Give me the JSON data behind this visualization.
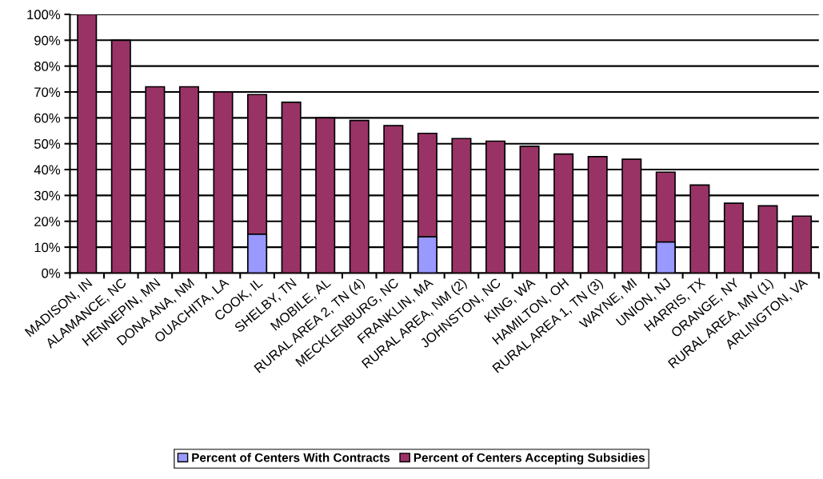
{
  "chart_data": {
    "type": "bar",
    "categories": [
      "MADISON, IN",
      "ALAMANCE, NC",
      "HENNEPIN, MN",
      "DONA ANA, NM",
      "OUACHITA, LA",
      "COOK, IL",
      "SHELBY, TN",
      "MOBILE, AL",
      "RURAL AREA 2, TN (4)",
      "MECKLENBURG, NC",
      "FRANKLIN, MA",
      "RURAL AREA, NM (2)",
      "JOHNSTON, NC",
      "KING, WA",
      "HAMILTON, OH",
      "RURAL AREA 1, TN (3)",
      "WAYNE, MI",
      "UNION, NJ",
      "HARRIS, TX",
      "ORANGE, NY",
      "RURAL AREA, MN (1)",
      "ARLINGTON, VA"
    ],
    "series": [
      {
        "name": "Percent of Centers With Contracts",
        "color": "#9999ff",
        "values": [
          null,
          null,
          null,
          null,
          null,
          15,
          null,
          null,
          null,
          null,
          14,
          null,
          null,
          null,
          null,
          null,
          null,
          12,
          null,
          null,
          null,
          null
        ]
      },
      {
        "name": "Percent of Centers Accepting Subsidies",
        "color": "#993366",
        "values": [
          100,
          90,
          72,
          72,
          70,
          69,
          66,
          60,
          59,
          57,
          54,
          52,
          51,
          49,
          46,
          45,
          44,
          39,
          34,
          27,
          26,
          22
        ]
      }
    ],
    "ylim": [
      0,
      100
    ],
    "yticks": [
      {
        "value": 0,
        "label": "0%"
      },
      {
        "value": 10,
        "label": "10%"
      },
      {
        "value": 20,
        "label": "20%"
      },
      {
        "value": 30,
        "label": "30%"
      },
      {
        "value": 40,
        "label": "40%"
      },
      {
        "value": 50,
        "label": "50%"
      },
      {
        "value": 60,
        "label": "60%"
      },
      {
        "value": 70,
        "label": "70%"
      },
      {
        "value": 80,
        "label": "80%"
      },
      {
        "value": 90,
        "label": "90%"
      },
      {
        "value": 100,
        "label": "100%"
      }
    ],
    "grid": "y",
    "legend": "bottom"
  }
}
